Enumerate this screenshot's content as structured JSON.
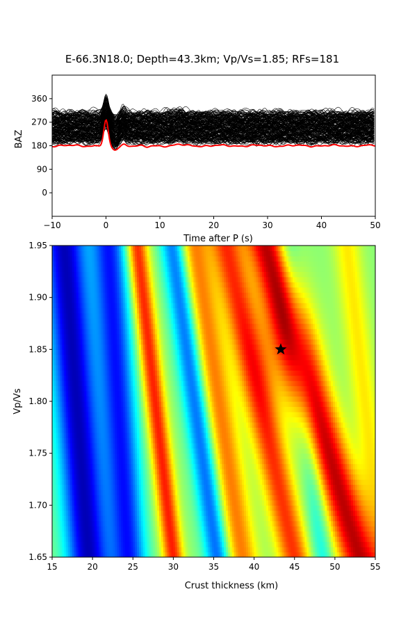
{
  "figure": {
    "title": "E-66.3N18.0; Depth=43.3km; Vp/Vs=1.85; RFs=181"
  },
  "chart_data": [
    {
      "type": "line",
      "name": "receiver-functions-by-baz",
      "xlabel": "Time after P (s)",
      "ylabel": "BAZ",
      "xlim": [
        -10,
        50
      ],
      "ylim": [
        -90,
        450
      ],
      "xticks": [
        -10,
        0,
        10,
        20,
        30,
        40,
        50
      ],
      "yticks": [
        0,
        90,
        180,
        270,
        360
      ],
      "grid": false,
      "trace_count": 181,
      "trace_color": "#000000",
      "stack_color": "#ff0000",
      "baz_range": [
        195,
        305
      ],
      "stack_baseline": 180,
      "stack_peak": {
        "time": 0,
        "baz": 275
      }
    },
    {
      "type": "heatmap",
      "name": "hk-stacking-grid",
      "colormap": "jet",
      "xlabel": "Crust thickness (km)",
      "ylabel": "Vp/Vs",
      "xlim": [
        15,
        55
      ],
      "ylim": [
        1.65,
        1.95
      ],
      "xticks": [
        15,
        20,
        25,
        30,
        35,
        40,
        45,
        50,
        55
      ],
      "yticks": [
        "1.65",
        "1.70",
        "1.75",
        "1.80",
        "1.85",
        "1.90",
        "1.95"
      ],
      "best_fit": {
        "thickness": 43.3,
        "vpvs": 1.85
      }
    }
  ]
}
